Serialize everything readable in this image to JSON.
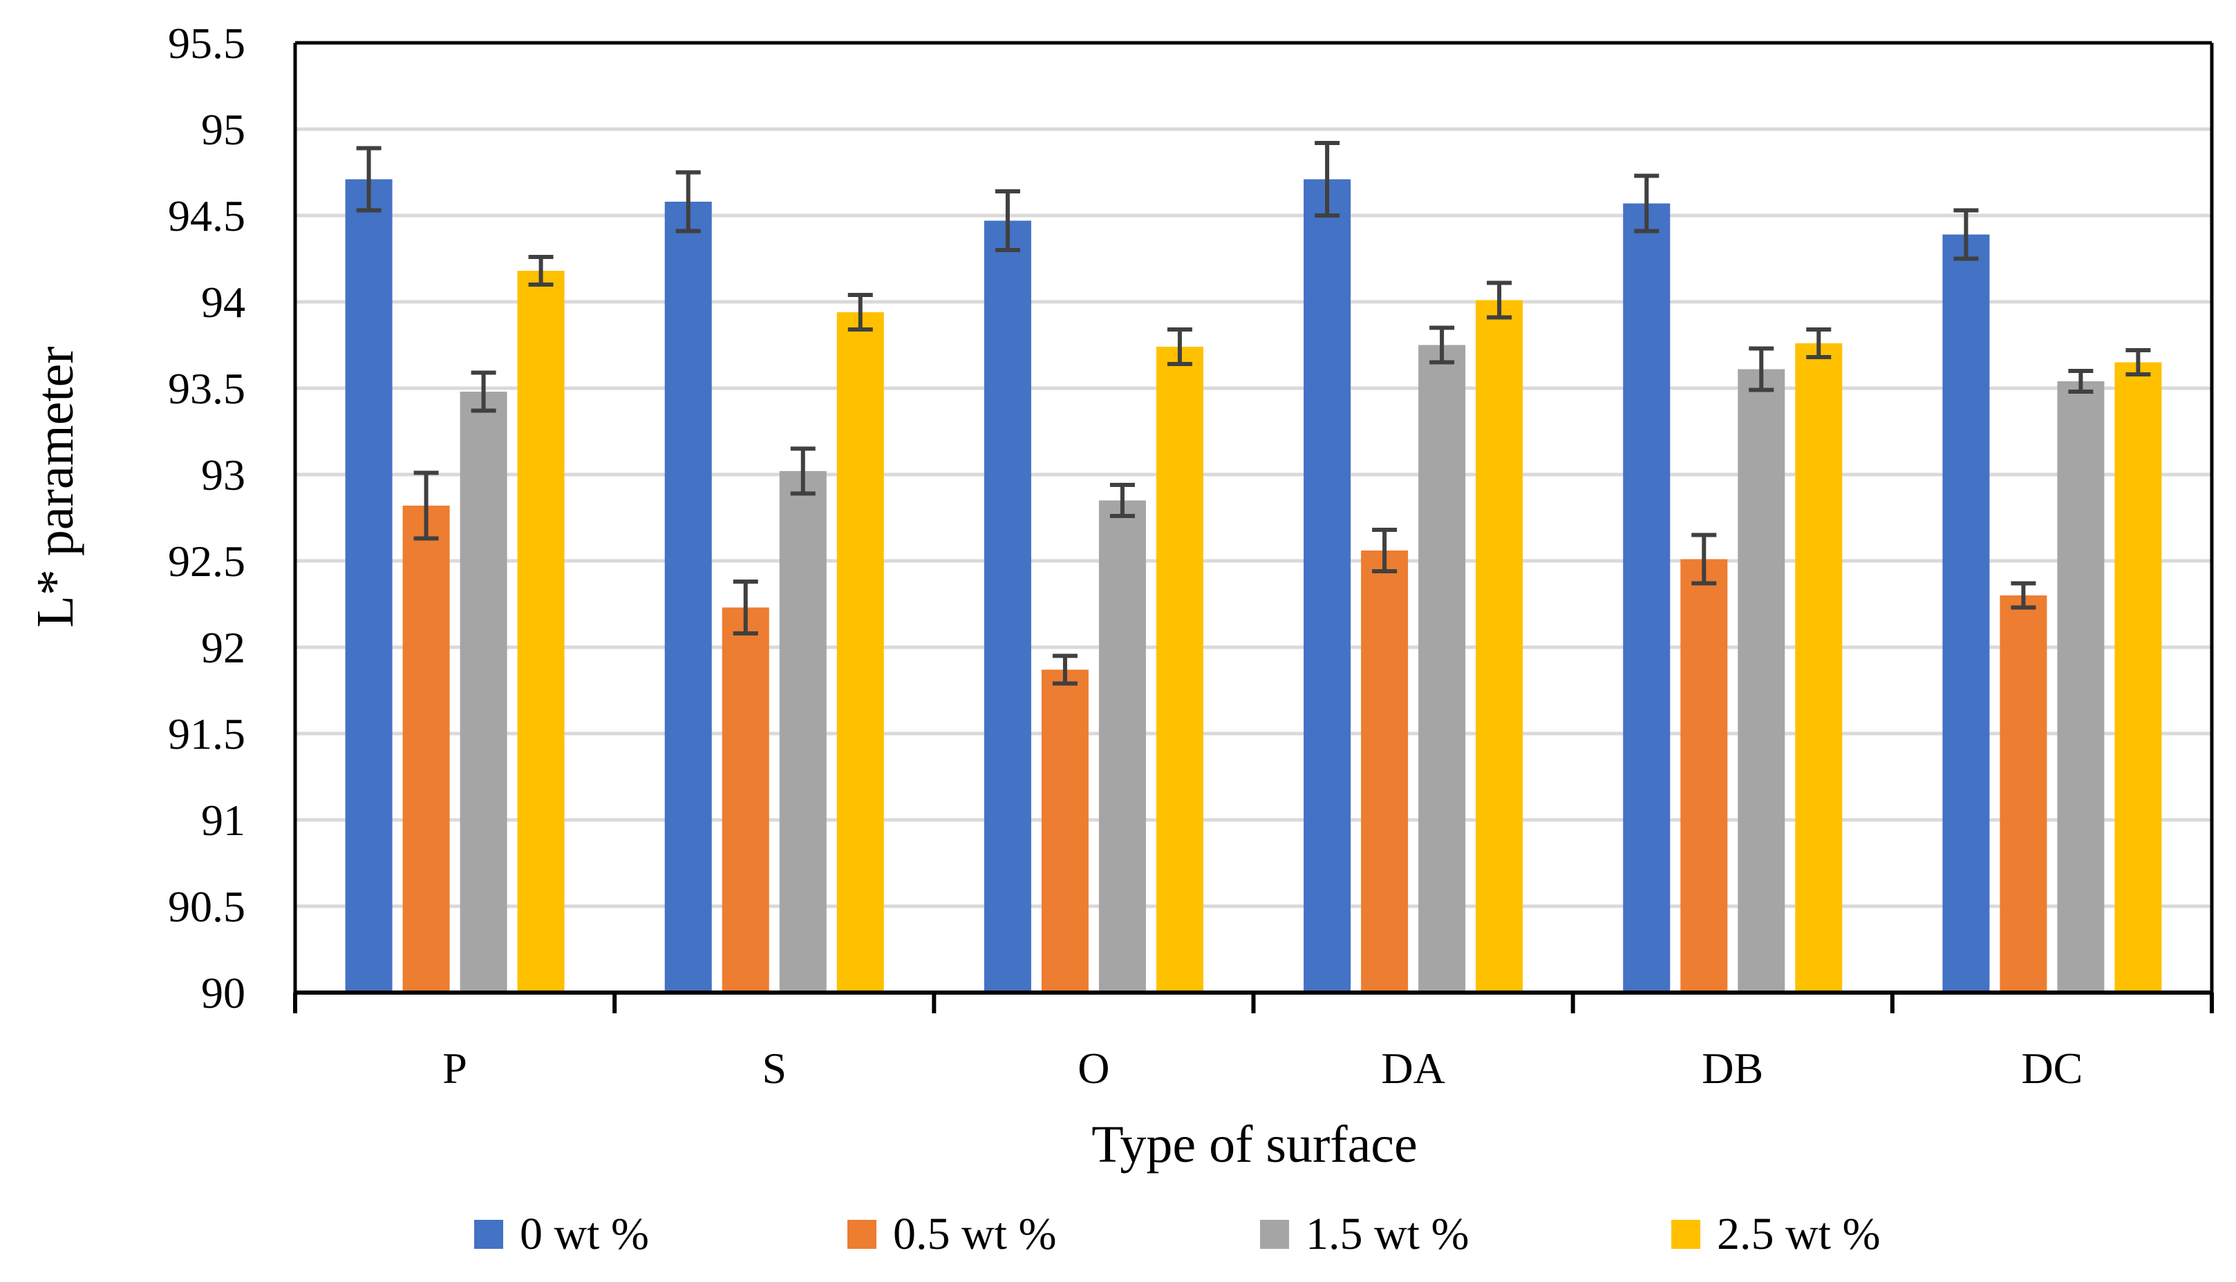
{
  "chart_data": {
    "type": "bar",
    "xlabel": "Type of surface",
    "ylabel": "L* parameter",
    "ylim": [
      90,
      95.5
    ],
    "yticks": [
      90,
      90.5,
      91,
      91.5,
      92,
      92.5,
      93,
      93.5,
      94,
      94.5,
      95,
      95.5
    ],
    "ytick_labels": [
      "90",
      "90.5",
      "91",
      "91.5",
      "92",
      "92.5",
      "93",
      "93.5",
      "94",
      "94.5",
      "95",
      "95.5"
    ],
    "grid": true,
    "legend_position": "bottom",
    "categories": [
      "P",
      "S",
      "O",
      "DA",
      "DB",
      "DC"
    ],
    "series": [
      {
        "name": "0 wt %",
        "color": "#4472C4",
        "values": [
          94.71,
          94.58,
          94.47,
          94.71,
          94.57,
          94.39
        ],
        "errors": [
          0.18,
          0.17,
          0.17,
          0.21,
          0.16,
          0.14
        ]
      },
      {
        "name": "0.5 wt %",
        "color": "#ED7D31",
        "values": [
          92.82,
          92.23,
          91.87,
          92.56,
          92.51,
          92.3
        ],
        "errors": [
          0.19,
          0.15,
          0.08,
          0.12,
          0.14,
          0.07
        ]
      },
      {
        "name": "1.5 wt %",
        "color": "#A5A5A5",
        "values": [
          93.48,
          93.02,
          92.85,
          93.75,
          93.61,
          93.54
        ],
        "errors": [
          0.11,
          0.13,
          0.09,
          0.1,
          0.12,
          0.06
        ]
      },
      {
        "name": "2.5 wt %",
        "color": "#FFC000",
        "values": [
          94.18,
          93.94,
          93.74,
          94.01,
          93.76,
          93.65
        ],
        "errors": [
          0.08,
          0.1,
          0.1,
          0.1,
          0.08,
          0.07
        ]
      }
    ],
    "colors": {
      "axis": "#000000",
      "grid": "#D9D9D9",
      "error_bar": "#404040",
      "background": "#FFFFFF"
    }
  }
}
